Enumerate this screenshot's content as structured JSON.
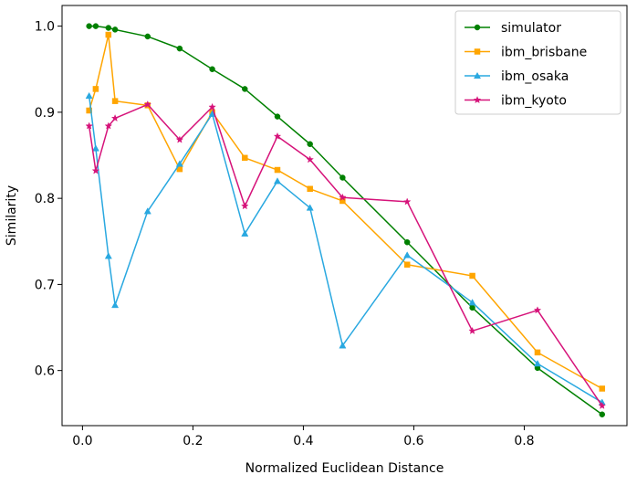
{
  "chart_data": {
    "type": "line",
    "title": "",
    "xlabel": "Normalized Euclidean Distance",
    "ylabel": "Similarity",
    "xlim": [
      -0.037,
      0.986
    ],
    "ylim": [
      0.536,
      1.024
    ],
    "xticks": [
      0.0,
      0.2,
      0.4,
      0.6,
      0.8
    ],
    "xtick_labels": [
      "0.0",
      "0.2",
      "0.4",
      "0.6",
      "0.8"
    ],
    "yticks": [
      0.6,
      0.7,
      0.8,
      0.9,
      1.0
    ],
    "ytick_labels": [
      "0.6",
      "0.7",
      "0.8",
      "0.9",
      "1.0"
    ],
    "grid": false,
    "legend_position": "top-right",
    "series": [
      {
        "name": "simulator",
        "color": "#008000",
        "marker": "circle",
        "x": [
          0.012,
          0.024,
          0.047,
          0.059,
          0.118,
          0.176,
          0.235,
          0.294,
          0.353,
          0.412,
          0.471,
          0.588,
          0.706,
          0.824,
          0.941
        ],
        "y": [
          1.0,
          1.0,
          0.998,
          0.996,
          0.988,
          0.974,
          0.95,
          0.927,
          0.895,
          0.863,
          0.824,
          0.749,
          0.673,
          0.603,
          0.549
        ]
      },
      {
        "name": "ibm_brisbane",
        "color": "#ffa500",
        "marker": "square",
        "x": [
          0.012,
          0.024,
          0.047,
          0.059,
          0.118,
          0.176,
          0.235,
          0.294,
          0.353,
          0.412,
          0.471,
          0.588,
          0.706,
          0.824,
          0.941
        ],
        "y": [
          0.902,
          0.927,
          0.99,
          0.913,
          0.908,
          0.834,
          0.9,
          0.847,
          0.833,
          0.811,
          0.797,
          0.723,
          0.71,
          0.621,
          0.579
        ]
      },
      {
        "name": "ibm_osaka",
        "color": "#29a8e0",
        "marker": "triangle",
        "x": [
          0.012,
          0.024,
          0.047,
          0.059,
          0.118,
          0.176,
          0.235,
          0.294,
          0.353,
          0.412,
          0.471,
          0.588,
          0.706,
          0.824,
          0.941
        ],
        "y": [
          0.919,
          0.858,
          0.733,
          0.676,
          0.785,
          0.84,
          0.898,
          0.759,
          0.82,
          0.789,
          0.629,
          0.734,
          0.679,
          0.608,
          0.563
        ]
      },
      {
        "name": "ibm_kyoto",
        "color": "#d6137a",
        "marker": "star",
        "x": [
          0.012,
          0.024,
          0.047,
          0.059,
          0.118,
          0.176,
          0.235,
          0.294,
          0.353,
          0.412,
          0.471,
          0.588,
          0.706,
          0.824,
          0.941
        ],
        "y": [
          0.884,
          0.832,
          0.884,
          0.893,
          0.909,
          0.868,
          0.906,
          0.791,
          0.872,
          0.845,
          0.801,
          0.796,
          0.646,
          0.67,
          0.559
        ]
      }
    ]
  }
}
